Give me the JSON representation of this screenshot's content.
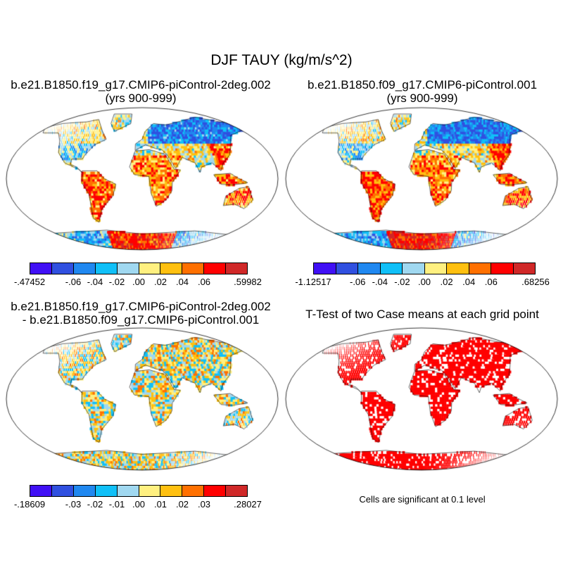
{
  "title": "DJF TAUY (kg/m/s^2)",
  "colors": [
    "#4010F5",
    "#3050E0",
    "#2088F0",
    "#10C0F8",
    "#A0D8F0",
    "#FFF080",
    "#FFC010",
    "#FF7000",
    "#FF0000",
    "#D02828"
  ],
  "panels": [
    {
      "title1": "b.e21.B1850.f19_g17.CMIP6-piControl-2deg.002",
      "title2": "(yrs 900-999)",
      "colorbar_labels": [
        "-.47452",
        "",
        "-.06",
        "-.04",
        "-.02",
        ".00",
        ".02",
        ".04",
        ".06",
        "",
        ".59982"
      ]
    },
    {
      "title1": "b.e21.B1850.f09_g17.CMIP6-piControl.001",
      "title2": "(yrs 900-999)",
      "colorbar_labels": [
        "-1.12517",
        "",
        "-.06",
        "-.04",
        "-.02",
        ".00",
        ".02",
        ".04",
        ".06",
        "",
        ".68256"
      ]
    },
    {
      "title1": "b.e21.B1850.f19_g17.CMIP6-piControl-2deg.002",
      "title2": "- b.e21.B1850.f09_g17.CMIP6-piControl.001",
      "colorbar_labels": [
        "-.18609",
        "",
        "-.03",
        "-.02",
        "-.01",
        ".00",
        ".01",
        ".02",
        ".03",
        "",
        ".28027"
      ]
    },
    {
      "title1": "T-Test of two Case means at each grid point",
      "note": "Cells are significant at 0.1 level",
      "significant_color": "#FF0000"
    }
  ]
}
